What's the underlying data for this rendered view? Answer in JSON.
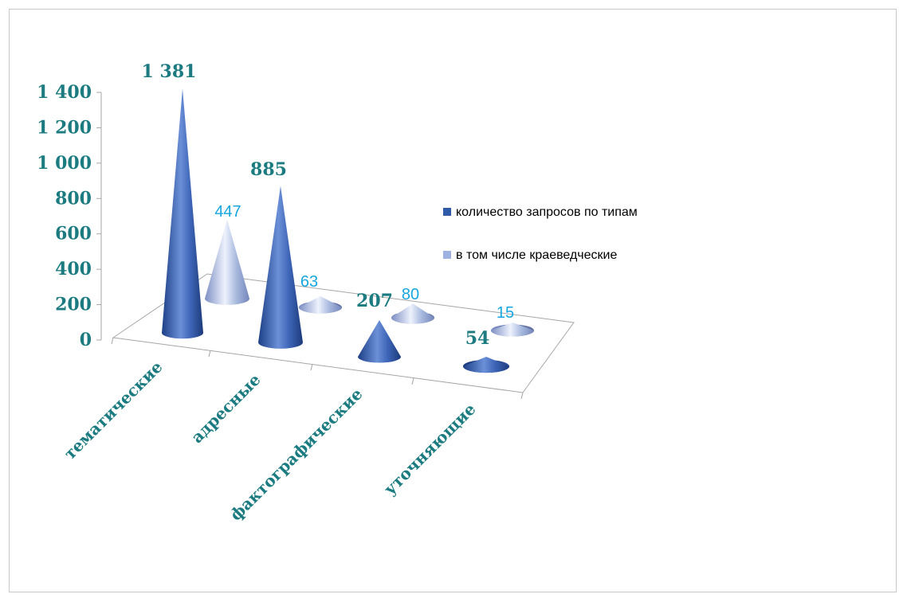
{
  "chart_data": {
    "type": "bar",
    "shape": "cone",
    "projection": "3d-perspective",
    "title": "",
    "categories": [
      "тематические",
      "адресные",
      "фактографические",
      "уточняющие"
    ],
    "series": [
      {
        "name": "количество запросов по типам",
        "values": [
          1381,
          885,
          207,
          54
        ],
        "labels": [
          "1 381",
          "885",
          "207",
          "54"
        ],
        "color": "#2f5aa8"
      },
      {
        "name": "в том числе краеведческие",
        "values": [
          447,
          63,
          80,
          15
        ],
        "labels": [
          "447",
          "63",
          "80",
          "15"
        ],
        "color": "#9eb1e0"
      }
    ],
    "y_ticks": [
      "0",
      "200",
      "400",
      "600",
      "800",
      "1 000",
      "1 200",
      "1 400"
    ],
    "ylim": [
      0,
      1400
    ],
    "gridlines": false,
    "legend_position": "right",
    "colors": {
      "axis_text": "#1b7b80",
      "series2_labels": "#17a6e0"
    }
  }
}
